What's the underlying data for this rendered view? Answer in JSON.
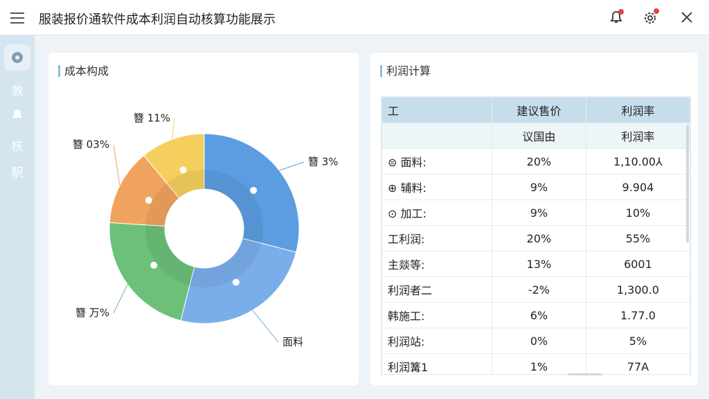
{
  "header": {
    "title": "服装报价通软件成本利润自动核算功能展示"
  },
  "sidebar": {
    "items": [
      "敦",
      "核",
      "駅"
    ]
  },
  "left_card": {
    "title": "成本构成",
    "donut": {
      "segments": [
        {
          "label": "簪 3%",
          "value": 29,
          "color": "#5b9de0"
        },
        {
          "label": "面料",
          "value": 25,
          "color": "#7aaeea"
        },
        {
          "label": "簪 万%",
          "value": 22,
          "color": "#6cc07a"
        },
        {
          "label": "簪 03%",
          "value": 13,
          "color": "#f0a35e"
        },
        {
          "label": "簪 11%",
          "value": 11,
          "color": "#f5cf5e"
        }
      ]
    }
  },
  "right_card": {
    "title": "利润计算",
    "table": {
      "header": [
        "工",
        "建议售价",
        "利润率"
      ],
      "subheader": [
        "",
        "议国由",
        "利润率"
      ],
      "rows": [
        [
          "⊜ 面料:",
          "20%",
          "1,10.00⅄"
        ],
        [
          "⊕ 辅料:",
          "9%",
          "9.904"
        ],
        [
          "⊙ 加工:",
          "9%",
          "10%"
        ],
        [
          "工利润:",
          "20%",
          "55%"
        ],
        [
          "主燚等:",
          "13%",
          "6001"
        ],
        [
          "利润者二",
          "-2%",
          "1,300.0"
        ],
        [
          "韩施工:",
          "6%",
          "1.77.0"
        ],
        [
          "利润站:",
          "0%",
          "5%"
        ],
        [
          "利润篝1",
          "1%",
          "77A"
        ]
      ]
    }
  }
}
